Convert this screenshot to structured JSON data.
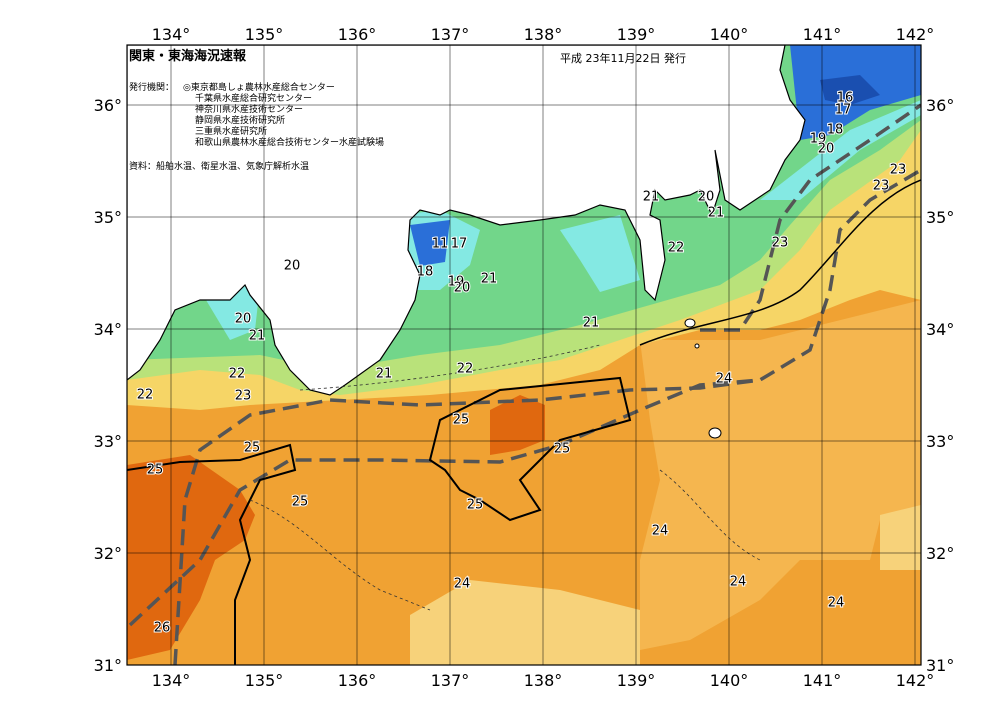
{
  "header": {
    "title": "関東・東海海況速報",
    "issued": "平成 23年11月22日 発行"
  },
  "issuers": {
    "label": "発行機関：",
    "names": [
      "◎東京都島しょ農林水産総合センター",
      "千葉県水産総合研究センター",
      "神奈川県水産技術センター",
      "静岡県水産技術研究所",
      "三重県水産研究所",
      "和歌山県農林水産総合技術センター水産試験場"
    ]
  },
  "source": "資料：船舶水温、衛星水温、気象庁解析水温",
  "map": {
    "lon_ticks": [
      {
        "value": 134,
        "label": "134°"
      },
      {
        "value": 135,
        "label": "135°"
      },
      {
        "value": 136,
        "label": "136°"
      },
      {
        "value": 137,
        "label": "137°"
      },
      {
        "value": 138,
        "label": "138°"
      },
      {
        "value": 139,
        "label": "139°"
      },
      {
        "value": 140,
        "label": "140°"
      },
      {
        "value": 141,
        "label": "141°"
      },
      {
        "value": 142,
        "label": "142°"
      }
    ],
    "lat_ticks": [
      {
        "value": 31,
        "label": "31°"
      },
      {
        "value": 32,
        "label": "32°"
      },
      {
        "value": 33,
        "label": "33°"
      },
      {
        "value": 34,
        "label": "34°"
      },
      {
        "value": 35,
        "label": "35°"
      },
      {
        "value": 36,
        "label": "36°"
      }
    ],
    "contour_labels": [
      16,
      17,
      18,
      19,
      20,
      23,
      23,
      21,
      20,
      21,
      22,
      23,
      20,
      11,
      17,
      18,
      19,
      20,
      21,
      21,
      20,
      21,
      22,
      22,
      23,
      21,
      22,
      24,
      25,
      25,
      25,
      25,
      25,
      25,
      24,
      24,
      24,
      24,
      26
    ]
  }
}
